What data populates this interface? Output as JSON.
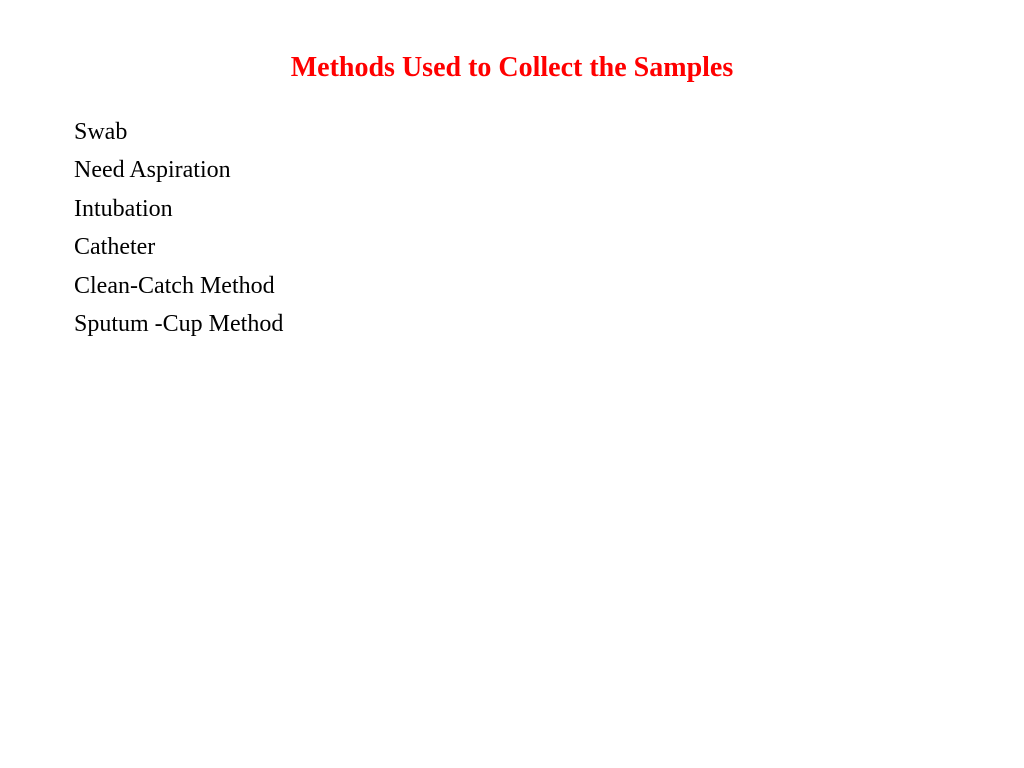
{
  "slide": {
    "title": "Methods Used to Collect the Samples",
    "title_color": "#ff0000",
    "title_fontsize": 28,
    "background_color": "#ffffff",
    "items": [
      "Swab",
      "Need Aspiration",
      "Intubation",
      "Catheter",
      "Clean-Catch Method",
      "Sputum -Cup Method"
    ],
    "item_color": "#000000",
    "item_fontsize": 24,
    "line_height": 1.35
  }
}
